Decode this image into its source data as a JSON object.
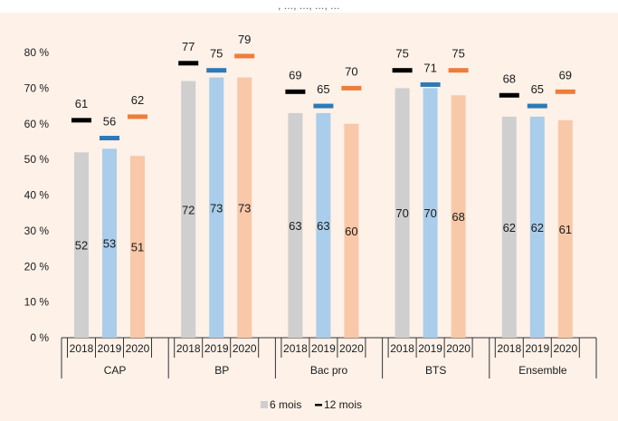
{
  "header_fragment": ", …, …, …, …",
  "colors": {
    "panel_background": "#fdf1e8",
    "bar_2018": "#cfcfcf",
    "bar_2019": "#a9cdea",
    "bar_2020": "#f8c8a8",
    "mark_2018": "#000000",
    "mark_2019": "#2e7ab8",
    "mark_2020": "#ee7d3b"
  },
  "chart_data": {
    "type": "bar",
    "title": "",
    "xlabel": "",
    "ylabel": "",
    "ylim": [
      0,
      80
    ],
    "y_ticks": [
      "0 %",
      "10 %",
      "20 %",
      "30 %",
      "40 %",
      "50 %",
      "60 %",
      "70 %",
      "80 %"
    ],
    "y_tick_values": [
      0,
      10,
      20,
      30,
      40,
      50,
      60,
      70,
      80
    ],
    "grid": false,
    "legend_position": "bottom",
    "groups": [
      "CAP",
      "BP",
      "Bac pro",
      "BTS",
      "Ensemble"
    ],
    "years": [
      "2018",
      "2019",
      "2020"
    ],
    "series": [
      {
        "name": "6 mois",
        "kind": "bar",
        "values": [
          [
            52,
            53,
            51
          ],
          [
            72,
            73,
            73
          ],
          [
            63,
            63,
            60
          ],
          [
            70,
            70,
            68
          ],
          [
            62,
            62,
            61
          ]
        ]
      },
      {
        "name": "12 mois",
        "kind": "marker",
        "values": [
          [
            61,
            56,
            62
          ],
          [
            77,
            75,
            79
          ],
          [
            69,
            65,
            70
          ],
          [
            75,
            71,
            75
          ],
          [
            68,
            65,
            69
          ]
        ]
      }
    ],
    "legend": [
      {
        "label": "6 mois",
        "swatch": "square",
        "color": "#cfcfcf"
      },
      {
        "label": "12 mois",
        "swatch": "dash",
        "color": "#000000"
      }
    ]
  }
}
